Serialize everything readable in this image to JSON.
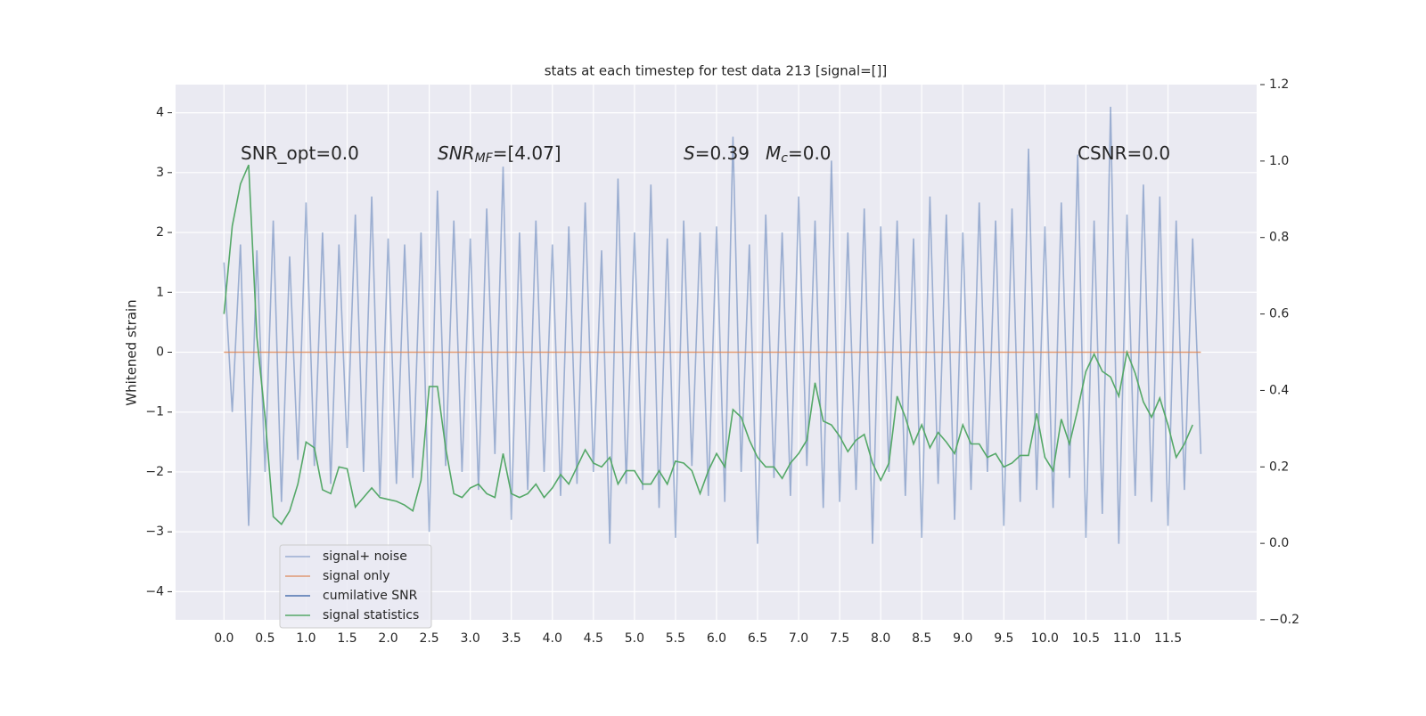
{
  "chart_data": {
    "type": "line",
    "title": "stats at each timestep for test data 213 [signal=[]]",
    "ylabel": "Whitened strain",
    "x": [
      0,
      0.1,
      0.2,
      0.3,
      0.4,
      0.5,
      0.6,
      0.7,
      0.8,
      0.9,
      1,
      1.1,
      1.2,
      1.3,
      1.4,
      1.5,
      1.6,
      1.7,
      1.8,
      1.9,
      2,
      2.1,
      2.2,
      2.3,
      2.4,
      2.5,
      2.6,
      2.7,
      2.8,
      2.9,
      3,
      3.1,
      3.2,
      3.3,
      3.4,
      3.5,
      3.6,
      3.7,
      3.8,
      3.9,
      4,
      4.1,
      4.2,
      4.3,
      4.4,
      4.5,
      4.6,
      4.7,
      4.8,
      4.9,
      5,
      5.1,
      5.2,
      5.3,
      5.4,
      5.5,
      5.6,
      5.7,
      5.8,
      5.9,
      6,
      6.1,
      6.2,
      6.3,
      6.4,
      6.5,
      6.6,
      6.7,
      6.8,
      6.9,
      7,
      7.1,
      7.2,
      7.3,
      7.4,
      7.5,
      7.6,
      7.7,
      7.8,
      7.9,
      8,
      8.1,
      8.2,
      8.3,
      8.4,
      8.5,
      8.6,
      8.7,
      8.8,
      8.9,
      9,
      9.1,
      9.2,
      9.3,
      9.4,
      9.5,
      9.6,
      9.7,
      9.8,
      9.9,
      10,
      10.1,
      10.2,
      10.3,
      10.4,
      10.5,
      10.6,
      10.7,
      10.8,
      10.9,
      11,
      11.1,
      11.2,
      11.3,
      11.4,
      11.5,
      11.6,
      11.7,
      11.8,
      11.9
    ],
    "series": [
      {
        "name": "signal+ noise",
        "color": "#4c72b0",
        "opacity": 0.5,
        "values": [
          1.5,
          -1.0,
          1.8,
          -2.9,
          1.7,
          -2.0,
          2.2,
          -2.5,
          1.6,
          -1.8,
          2.5,
          -1.9,
          2.0,
          -2.2,
          1.8,
          -1.6,
          2.3,
          -2.0,
          2.6,
          -2.4,
          1.9,
          -2.2,
          1.8,
          -2.1,
          2.0,
          -3.0,
          2.7,
          -1.9,
          2.2,
          -2.0,
          1.9,
          -2.3,
          2.4,
          -1.7,
          3.1,
          -2.8,
          2.0,
          -2.3,
          2.2,
          -2.0,
          1.8,
          -2.4,
          2.1,
          -2.2,
          2.5,
          -2.0,
          1.7,
          -3.2,
          2.9,
          -2.2,
          2.0,
          -2.3,
          2.8,
          -2.6,
          1.9,
          -3.1,
          2.2,
          -1.9,
          2.0,
          -2.4,
          2.1,
          -2.5,
          3.6,
          -2.0,
          1.8,
          -3.2,
          2.3,
          -2.1,
          2.0,
          -2.4,
          2.6,
          -1.9,
          2.2,
          -2.6,
          3.2,
          -2.5,
          2.0,
          -2.3,
          2.4,
          -3.2,
          2.1,
          -2.0,
          2.2,
          -2.4,
          1.9,
          -3.1,
          2.6,
          -2.2,
          2.3,
          -2.8,
          2.0,
          -2.3,
          2.5,
          -2.0,
          2.2,
          -2.9,
          2.4,
          -2.5,
          3.4,
          -2.3,
          2.1,
          -2.6,
          2.5,
          -2.1,
          3.3,
          -3.1,
          2.2,
          -2.7,
          4.1,
          -3.2,
          2.3,
          -2.4,
          2.8,
          -2.5,
          2.6,
          -2.9,
          2.2,
          -2.3,
          1.9,
          -1.7
        ]
      },
      {
        "name": "signal only",
        "color": "#dd8452",
        "opacity": 0.8,
        "values": [
          0,
          0,
          0,
          0,
          0,
          0,
          0,
          0,
          0,
          0,
          0,
          0,
          0,
          0,
          0,
          0,
          0,
          0,
          0,
          0,
          0,
          0,
          0,
          0,
          0,
          0,
          0,
          0,
          0,
          0,
          0,
          0,
          0,
          0,
          0,
          0,
          0,
          0,
          0,
          0,
          0,
          0,
          0,
          0,
          0,
          0,
          0,
          0,
          0,
          0,
          0,
          0,
          0,
          0,
          0,
          0,
          0,
          0,
          0,
          0,
          0,
          0,
          0,
          0,
          0,
          0,
          0,
          0,
          0,
          0,
          0,
          0,
          0,
          0,
          0,
          0,
          0,
          0,
          0,
          0,
          0,
          0,
          0,
          0,
          0,
          0,
          0,
          0,
          0,
          0,
          0,
          0,
          0,
          0,
          0,
          0,
          0,
          0,
          0,
          0,
          0,
          0,
          0,
          0,
          0,
          0,
          0,
          0,
          0,
          0,
          0,
          0,
          0,
          0,
          0,
          0,
          0,
          0,
          0,
          0
        ]
      },
      {
        "name": "cumilative SNR",
        "color": "#4c72b0",
        "opacity": 1,
        "axis": "y2",
        "values": [
          null,
          null,
          null,
          null,
          null,
          null,
          null,
          null,
          null,
          null,
          null,
          null,
          null,
          null,
          null,
          null,
          null,
          null,
          null,
          null,
          null,
          null,
          null,
          null,
          null,
          null,
          null,
          null,
          null,
          null,
          null,
          null,
          null,
          null,
          null,
          null,
          null,
          null,
          null,
          null,
          null,
          null,
          null,
          null,
          null,
          null,
          null,
          null,
          null,
          null,
          null,
          null,
          null,
          null,
          null,
          null,
          null,
          null,
          null,
          null,
          null,
          null,
          null,
          null,
          null,
          null,
          null,
          null,
          null,
          null,
          null,
          null,
          null,
          null,
          null,
          null,
          null,
          null,
          null,
          null,
          null,
          null,
          null,
          null,
          null,
          null,
          null,
          null,
          null,
          null,
          null,
          null,
          null,
          null,
          null,
          null,
          null,
          null,
          null,
          null,
          null,
          null,
          null,
          null,
          null,
          null,
          null,
          null,
          null,
          null,
          null,
          null,
          null,
          null,
          null,
          null,
          null,
          null,
          null,
          null
        ]
      },
      {
        "name": "signal statistics",
        "color": "#55a868",
        "opacity": 1,
        "axis": "y2",
        "values": [
          0.6,
          0.83,
          0.94,
          0.99,
          0.54,
          0.33,
          0.07,
          0.05,
          0.085,
          0.155,
          0.265,
          0.25,
          0.14,
          0.13,
          0.2,
          0.195,
          0.095,
          0.12,
          0.145,
          0.12,
          0.115,
          0.11,
          0.1,
          0.085,
          0.165,
          0.41,
          0.41,
          0.25,
          0.13,
          0.12,
          0.145,
          0.155,
          0.13,
          0.12,
          0.235,
          0.13,
          0.12,
          0.13,
          0.155,
          0.12,
          0.145,
          0.18,
          0.155,
          0.2,
          0.245,
          0.21,
          0.2,
          0.225,
          0.155,
          0.19,
          0.19,
          0.155,
          0.155,
          0.19,
          0.155,
          0.215,
          0.21,
          0.19,
          0.13,
          0.19,
          0.235,
          0.2,
          0.35,
          0.33,
          0.27,
          0.225,
          0.2,
          0.2,
          0.17,
          0.21,
          0.235,
          0.27,
          0.42,
          0.32,
          0.31,
          0.28,
          0.24,
          0.27,
          0.285,
          0.21,
          0.165,
          0.21,
          0.385,
          0.33,
          0.26,
          0.31,
          0.25,
          0.29,
          0.265,
          0.235,
          0.31,
          0.26,
          0.26,
          0.225,
          0.235,
          0.2,
          0.21,
          0.23,
          0.23,
          0.34,
          0.225,
          0.19,
          0.325,
          0.26,
          0.35,
          0.45,
          0.495,
          0.45,
          0.435,
          0.385,
          0.5,
          0.445,
          0.37,
          0.33,
          0.38,
          0.31,
          0.225,
          0.26,
          0.31,
          null
        ]
      }
    ],
    "xlim": [
      -0.59,
      12.58
    ],
    "xticks": [
      {
        "value": 0,
        "label": "0.0"
      },
      0.5,
      {
        "value": 1,
        "label": "1.0"
      },
      1.5,
      {
        "value": 2,
        "label": "2.0"
      },
      2.5,
      {
        "value": 3,
        "label": "3.0"
      },
      3.5,
      {
        "value": 4,
        "label": "4.0"
      },
      4.5,
      {
        "value": 5,
        "label": "5.0"
      },
      5.5,
      {
        "value": 6,
        "label": "6.0"
      },
      6.5,
      {
        "value": 7,
        "label": "7.0"
      },
      7.5,
      {
        "value": 8,
        "label": "8.0"
      },
      8.5,
      {
        "value": 9,
        "label": "9.0"
      },
      9.5,
      {
        "value": 10,
        "label": "10.0"
      },
      10.5,
      {
        "value": 11,
        "label": "11.0"
      },
      11.5
    ],
    "ylim": [
      -4.47,
      4.47
    ],
    "yticks": [
      {
        "value": -4,
        "label": "−4"
      },
      {
        "value": -3,
        "label": "−3"
      },
      {
        "value": -2,
        "label": "−2"
      },
      {
        "value": -1,
        "label": "−1"
      },
      0,
      1,
      2,
      3,
      4
    ],
    "y2lim": [
      -0.2,
      1.2
    ],
    "y2ticks": [
      {
        "value": -0.2,
        "label": "−0.2"
      },
      {
        "value": 0,
        "label": "0.0"
      },
      0.2,
      0.4,
      0.6,
      0.8,
      {
        "value": 1,
        "label": "1.0"
      },
      1.2
    ],
    "grid": true,
    "legend": "lower left",
    "annotations": [
      [
        {
          "text": "SNR_opt=0.0"
        }
      ],
      [
        {
          "text": "SNR",
          "italic": true
        },
        {
          "text": "MF",
          "italic": true,
          "sub": true
        },
        {
          "text": "=[4.07]"
        }
      ],
      [
        {
          "text": "S",
          "italic": true
        },
        {
          "text": "=0.39"
        }
      ],
      [
        {
          "text": "M",
          "italic": true
        },
        {
          "text": "c",
          "italic": true,
          "sub": true
        },
        {
          "text": "=0.0"
        }
      ],
      [
        {
          "text": "CSNR=0.0"
        }
      ]
    ]
  }
}
